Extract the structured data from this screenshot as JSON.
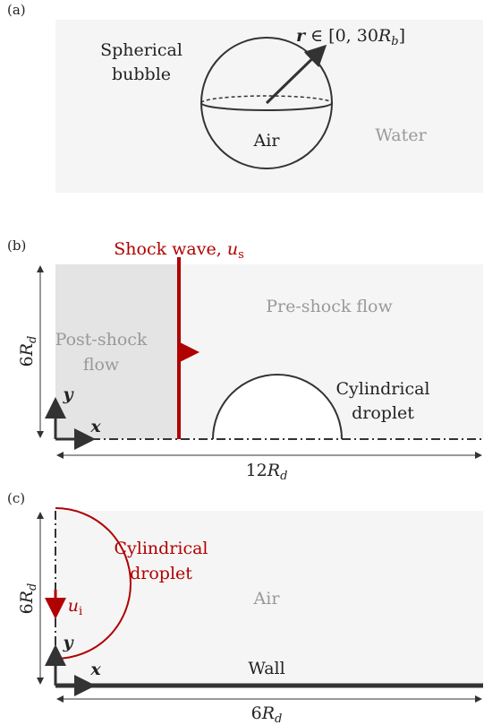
{
  "panel_a": {
    "tag": "(a)",
    "radius_label": {
      "main": "r",
      "rest": " ∈ [0, 30",
      "var": "R",
      "sub": "b",
      "end": "]"
    },
    "bubble_label": [
      "Spherical",
      "bubble"
    ],
    "inside": "Air",
    "outside": "Water"
  },
  "panel_b": {
    "tag": "(b)",
    "shock_label": {
      "main": "Shock wave, ",
      "var": "u",
      "sub": "s"
    },
    "pre_shock": "Pre-shock flow",
    "post_shock": [
      "Post-shock",
      "flow"
    ],
    "height": {
      "num": "6",
      "var": "R",
      "sub": "d"
    },
    "droplet_label": [
      "Cylindrical",
      "droplet"
    ],
    "y_axis": "y",
    "x_axis": "x",
    "width": {
      "num": "12",
      "var": "R",
      "sub": "d"
    }
  },
  "panel_c": {
    "tag": "(c)",
    "droplet_label": [
      "Cylindrical",
      "droplet"
    ],
    "height": {
      "num": "6",
      "var": "R",
      "sub": "d"
    },
    "velocity": {
      "var": "u",
      "sub": "i"
    },
    "medium": "Air",
    "y_axis": "y",
    "x_axis": "x",
    "wall": "Wall",
    "width": {
      "num": "6",
      "var": "R",
      "sub": "d"
    }
  }
}
